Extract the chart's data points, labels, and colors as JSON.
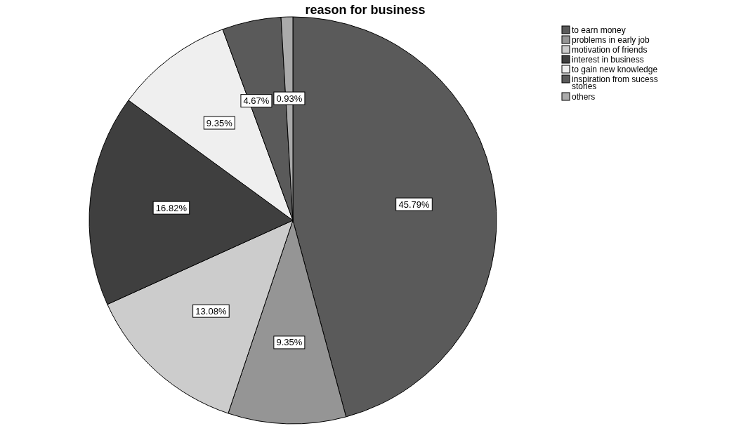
{
  "chart_data": {
    "type": "pie",
    "title": "reason for business",
    "categories": [
      "to earn money",
      "problems in early job",
      "motivation of friends",
      "interest in business",
      "to gain new knowledge",
      "inspiration from sucess stories",
      "others"
    ],
    "values": [
      45.79,
      9.35,
      13.08,
      16.82,
      9.35,
      4.67,
      0.93
    ],
    "colors": [
      "#5a5a5a",
      "#959595",
      "#cccccc",
      "#3f3f3f",
      "#efefef",
      "#5a5a5a",
      "#aaaaaa"
    ],
    "value_labels": [
      "45.79%",
      "9.35%",
      "13.08%",
      "16.82%",
      "9.35%",
      "4.67%",
      "0.93%"
    ],
    "legend": "top right"
  }
}
